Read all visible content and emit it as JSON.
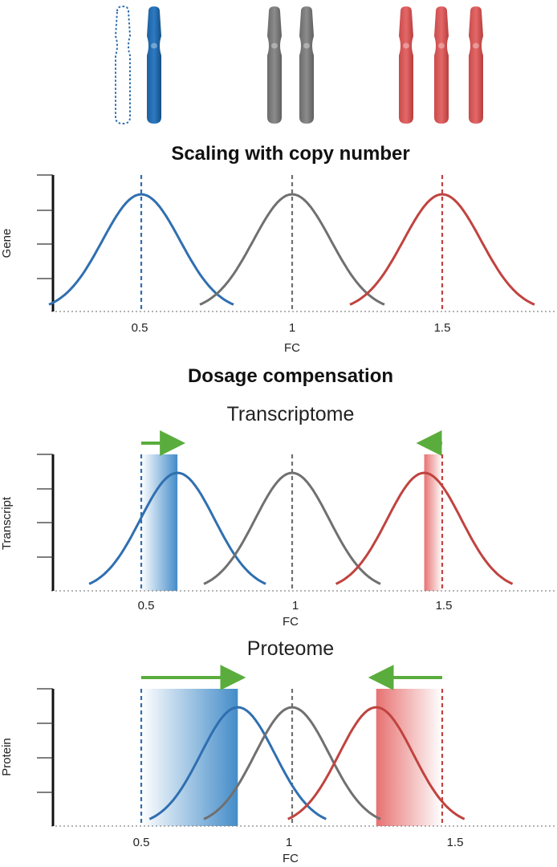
{
  "sections": {
    "scaling_title": "Scaling with copy number",
    "dosage_title": "Dosage compensation",
    "transcriptome_title": "Transcriptome",
    "proteome_title": "Proteome"
  },
  "colors": {
    "monosomy": "#2f6fb0",
    "disomy": "#707070",
    "trisomy": "#c0433f",
    "arrow": "#5aad3d",
    "baseline": "#888888"
  },
  "chromosomes": {
    "groups": [
      {
        "name": "monosomy",
        "copies": 1,
        "lost": 1,
        "icon": "chromosome-icon"
      },
      {
        "name": "disomy",
        "copies": 2,
        "lost": 0,
        "icon": "chromosome-icon"
      },
      {
        "name": "trisomy",
        "copies": 3,
        "lost": 0,
        "icon": "chromosome-icon"
      }
    ]
  },
  "panels": [
    {
      "id": "gene",
      "ylabel": "Gene",
      "xlabel": "FC",
      "ticks": [
        "0.5",
        "1",
        "1.5"
      ],
      "chart_data": {
        "type": "line",
        "xlabel": "FC",
        "ylabel": "Gene",
        "x_ticks": [
          0.5,
          1,
          1.5
        ],
        "reference_lines": [
          0.5,
          1,
          1.5
        ],
        "series": [
          {
            "name": "",
            "color": "monosomy",
            "peak": 0.5
          },
          {
            "name": "",
            "color": "disomy",
            "peak": 1.0
          },
          {
            "name": "",
            "color": "trisomy",
            "peak": 1.5
          }
        ]
      }
    },
    {
      "id": "transcript",
      "ylabel": "Transcript",
      "xlabel": "FC",
      "ticks": [
        "0.5",
        "1",
        "1.5"
      ],
      "chart_data": {
        "type": "line",
        "xlabel": "FC",
        "ylabel": "Transcript",
        "x_ticks": [
          0.5,
          1,
          1.5
        ],
        "reference_lines": [
          0.5,
          1,
          1.5
        ],
        "series": [
          {
            "name": "",
            "color": "monosomy",
            "peak": 0.62
          },
          {
            "name": "",
            "color": "disomy",
            "peak": 1.0
          },
          {
            "name": "",
            "color": "trisomy",
            "peak": 1.44
          }
        ],
        "compensation": [
          {
            "from": 0.5,
            "to": 0.62,
            "color": "monosomy"
          },
          {
            "from": 1.5,
            "to": 1.44,
            "color": "trisomy"
          }
        ]
      }
    },
    {
      "id": "protein",
      "ylabel": "Protein",
      "xlabel": "FC",
      "ticks": [
        "0.5",
        "1",
        "1.5"
      ],
      "chart_data": {
        "type": "line",
        "xlabel": "FC",
        "ylabel": "Protein",
        "x_ticks": [
          0.5,
          1,
          1.5
        ],
        "reference_lines": [
          0.5,
          1,
          1.5
        ],
        "series": [
          {
            "name": "",
            "color": "monosomy",
            "peak": 0.82
          },
          {
            "name": "",
            "color": "disomy",
            "peak": 1.0
          },
          {
            "name": "",
            "color": "trisomy",
            "peak": 1.28
          }
        ],
        "compensation": [
          {
            "from": 0.5,
            "to": 0.82,
            "color": "monosomy"
          },
          {
            "from": 1.5,
            "to": 1.28,
            "color": "trisomy"
          }
        ]
      }
    }
  ]
}
